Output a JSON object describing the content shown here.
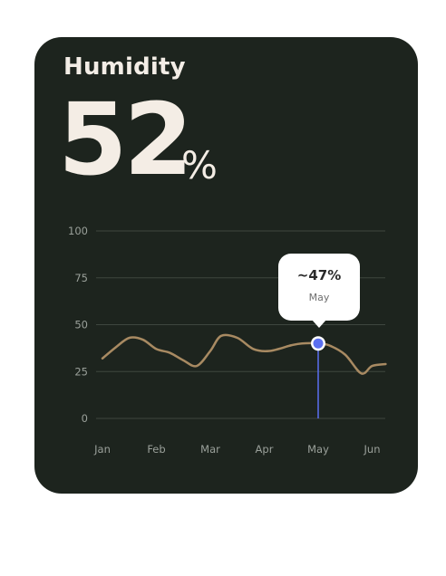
{
  "widget": {
    "title": "Humidity",
    "value": "52",
    "unit": "%"
  },
  "tooltip": {
    "value": "~47%",
    "label": "May"
  },
  "colors": {
    "card_background": "#1d241e",
    "line": "#a88a62",
    "highlight": "#5b6ff0",
    "text": "#f4ede5"
  },
  "chart_data": {
    "type": "line",
    "x": [
      "Jan",
      "Feb",
      "Mar",
      "Apr",
      "May",
      "Jun"
    ],
    "yticks": [
      "100",
      "75",
      "50",
      "25",
      "0"
    ],
    "ylim": [
      0,
      100
    ],
    "grid": true,
    "highlight_month": "May",
    "series": [
      {
        "points": [
          [
            0,
            32
          ],
          [
            0.25,
            38
          ],
          [
            0.5,
            43
          ],
          [
            0.75,
            42
          ],
          [
            1,
            37
          ],
          [
            1.25,
            35
          ],
          [
            1.5,
            31
          ],
          [
            1.75,
            28
          ],
          [
            2,
            36
          ],
          [
            2.2,
            44
          ],
          [
            2.5,
            43
          ],
          [
            2.8,
            37
          ],
          [
            3.1,
            36
          ],
          [
            3.5,
            39
          ],
          [
            3.7,
            40
          ],
          [
            4,
            40
          ],
          [
            4.2,
            39
          ],
          [
            4.5,
            34
          ],
          [
            4.8,
            24
          ],
          [
            5,
            28
          ],
          [
            5.25,
            29
          ]
        ]
      }
    ]
  }
}
